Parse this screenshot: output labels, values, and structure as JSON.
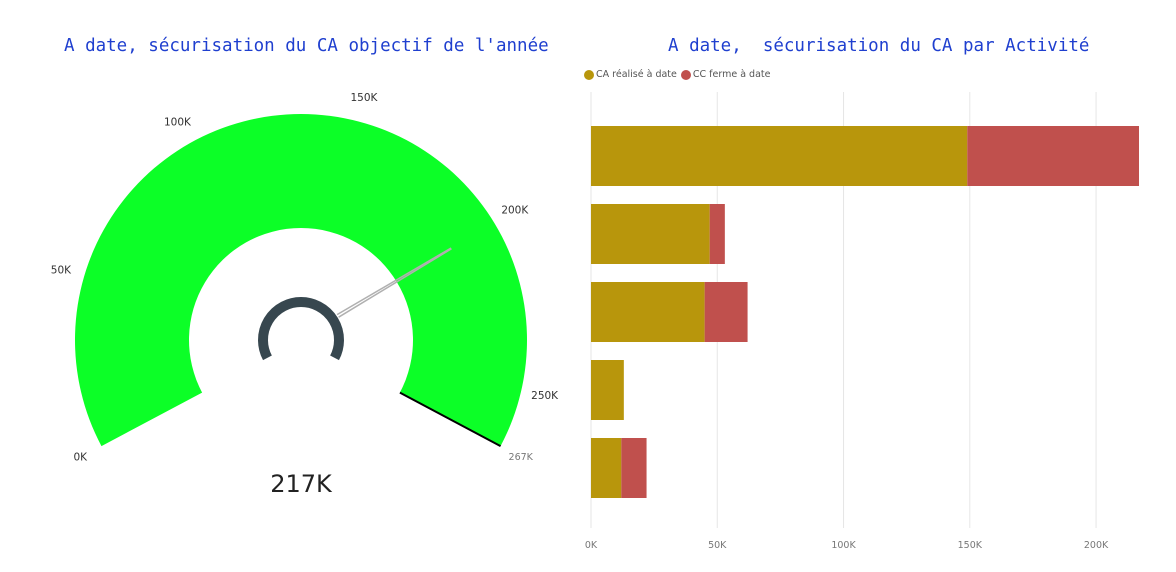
{
  "chart_data": [
    {
      "type": "gauge",
      "title": "A date, sécurisation du CA objectif de l'année",
      "min": 0,
      "max": 267000,
      "value": 217000,
      "value_label": "217K",
      "ticks": [
        0,
        50000,
        100000,
        150000,
        200000,
        250000
      ],
      "tick_labels": [
        "0K",
        "50K",
        "100K",
        "150K",
        "200K",
        "250K"
      ],
      "max_label": "267K",
      "target": 200000,
      "fill_color": "#0cff27",
      "center_marker_color": "#37474f"
    },
    {
      "type": "bar",
      "orientation": "horizontal",
      "stacked": true,
      "title": "A date,  sécurisation du CA par Activité",
      "categories": [
        "",
        "",
        "",
        "",
        ""
      ],
      "series": [
        {
          "name": "CA réalisé à date",
          "color": "#b8960c",
          "values": [
            149000,
            47000,
            45000,
            13000,
            12000
          ]
        },
        {
          "name": "CC ferme à date",
          "color": "#c0504d",
          "values": [
            68000,
            6000,
            17000,
            0,
            10000
          ]
        }
      ],
      "xlim": [
        0,
        217000
      ],
      "xticks": [
        0,
        50000,
        100000,
        150000,
        200000
      ],
      "xtick_labels": [
        "0K",
        "50K",
        "100K",
        "150K",
        "200K"
      ],
      "grid": true,
      "legend_position": "top-left"
    }
  ]
}
